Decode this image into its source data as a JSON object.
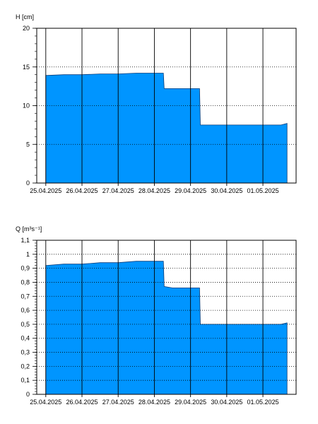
{
  "chart_data": [
    {
      "type": "area",
      "ylabel": "H [cm]",
      "ylim": [
        0,
        20
      ],
      "yticks": [
        "0",
        "5",
        "10",
        "15",
        "20"
      ],
      "ytick_values": [
        0,
        5,
        10,
        15,
        20
      ],
      "xlim": [
        "2025-04-24T18:00",
        "2025-05-01T22:00"
      ],
      "xtick_labels": [
        "25.04.2025",
        "26.04.2025",
        "27.04.2025",
        "28.04.2025",
        "29.04.2025",
        "30.04.2025",
        "01.05.2025"
      ],
      "xtick_values": [
        "2025-04-25T00:00",
        "2025-04-26T00:00",
        "2025-04-27T00:00",
        "2025-04-28T00:00",
        "2025-04-29T00:00",
        "2025-04-30T00:00",
        "2025-05-01T00:00"
      ],
      "grid": true,
      "fill_color": "#0095ff",
      "series": [
        {
          "x": [
            "2025-04-25T00:00",
            "2025-04-25T12:00",
            "2025-04-26T00:00",
            "2025-04-26T12:00",
            "2025-04-27T00:00",
            "2025-04-27T12:00",
            "2025-04-28T00:00",
            "2025-04-28T06:00",
            "2025-04-28T06:30",
            "2025-04-28T12:00",
            "2025-04-29T00:00",
            "2025-04-29T06:00",
            "2025-04-29T06:30",
            "2025-04-29T12:00",
            "2025-04-30T00:00",
            "2025-04-30T12:00",
            "2025-05-01T00:00",
            "2025-05-01T12:00",
            "2025-05-01T16:00"
          ],
          "y": [
            13.9,
            14.0,
            14.0,
            14.1,
            14.1,
            14.2,
            14.2,
            14.2,
            12.2,
            12.2,
            12.2,
            12.2,
            7.5,
            7.5,
            7.5,
            7.5,
            7.5,
            7.5,
            7.7
          ]
        }
      ]
    },
    {
      "type": "area",
      "ylabel": "Q [m³s⁻¹]",
      "ylim": [
        0,
        1.1
      ],
      "yticks": [
        "0",
        "0,1",
        "0,2",
        "0,3",
        "0,4",
        "0,5",
        "0,6",
        "0,7",
        "0,8",
        "0,9",
        "1",
        "1,1"
      ],
      "ytick_values": [
        0,
        0.1,
        0.2,
        0.3,
        0.4,
        0.5,
        0.6,
        0.7,
        0.8,
        0.9,
        1.0,
        1.1
      ],
      "xlim": [
        "2025-04-24T18:00",
        "2025-05-01T22:00"
      ],
      "xtick_labels": [
        "25.04.2025",
        "26.04.2025",
        "27.04.2025",
        "28.04.2025",
        "29.04.2025",
        "30.04.2025",
        "01.05.2025"
      ],
      "xtick_values": [
        "2025-04-25T00:00",
        "2025-04-26T00:00",
        "2025-04-27T00:00",
        "2025-04-28T00:00",
        "2025-04-29T00:00",
        "2025-04-30T00:00",
        "2025-05-01T00:00"
      ],
      "grid": true,
      "fill_color": "#0095ff",
      "series": [
        {
          "x": [
            "2025-04-25T00:00",
            "2025-04-25T12:00",
            "2025-04-26T00:00",
            "2025-04-26T12:00",
            "2025-04-27T00:00",
            "2025-04-27T12:00",
            "2025-04-28T00:00",
            "2025-04-28T06:00",
            "2025-04-28T06:30",
            "2025-04-28T12:00",
            "2025-04-29T00:00",
            "2025-04-29T06:00",
            "2025-04-29T06:30",
            "2025-04-29T12:00",
            "2025-04-30T00:00",
            "2025-04-30T12:00",
            "2025-05-01T00:00",
            "2025-05-01T12:00",
            "2025-05-01T16:00"
          ],
          "y": [
            0.92,
            0.93,
            0.93,
            0.94,
            0.94,
            0.95,
            0.95,
            0.95,
            0.77,
            0.76,
            0.76,
            0.76,
            0.5,
            0.5,
            0.5,
            0.5,
            0.5,
            0.5,
            0.51
          ]
        }
      ]
    }
  ]
}
